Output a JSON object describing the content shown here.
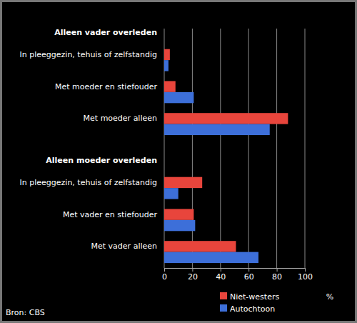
{
  "chart_data": {
    "type": "bar",
    "orientation": "horizontal",
    "categories": [
      "Alleen vader overleden",
      "In pleeggezin, tehuis of zelfstandig",
      "Met moeder en stiefouder",
      "Met moeder alleen",
      "Alleen moeder overleden",
      "In pleeggezin, tehuis of zelfstandig",
      "Met vader en stiefouder",
      "Met vader alleen"
    ],
    "series": [
      {
        "name": "Niet-westers",
        "color": "#e8453c",
        "values": [
          null,
          4,
          8,
          88,
          null,
          27,
          21,
          51
        ]
      },
      {
        "name": "Autochtoon",
        "color": "#3d6fd9",
        "values": [
          null,
          3,
          21,
          75,
          null,
          10,
          22,
          67
        ]
      }
    ],
    "xlabel": "%",
    "xlim": [
      0,
      100
    ],
    "xticks": [
      0,
      20,
      40,
      60,
      80,
      100
    ],
    "grid": true,
    "legend": "bottom",
    "annotations": [
      "Bron: CBS"
    ]
  }
}
